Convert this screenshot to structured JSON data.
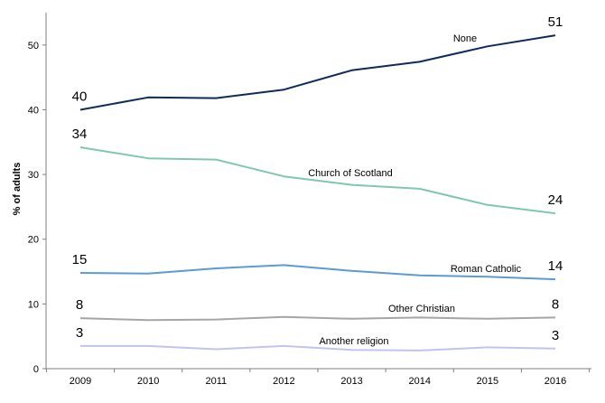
{
  "chart_data": {
    "type": "line",
    "title": "",
    "xlabel": "",
    "ylabel": "% of adults",
    "x": [
      "2009",
      "2010",
      "2011",
      "2012",
      "2013",
      "2014",
      "2015",
      "2016"
    ],
    "ylim": [
      0,
      55
    ],
    "yticks": [
      0,
      10,
      20,
      30,
      40,
      50
    ],
    "grid": false,
    "legend": "none (series labelled inline)",
    "series": [
      {
        "name": "None",
        "color": "#0f2b5b",
        "values": [
          40,
          41.9,
          41.8,
          43.1,
          46.1,
          47.4,
          49.8,
          51.5
        ],
        "start_label": "40",
        "end_label": "51"
      },
      {
        "name": "Church of Scotland",
        "color": "#7fc7b2",
        "values": [
          34.2,
          32.5,
          32.3,
          29.7,
          28.4,
          27.8,
          25.3,
          24.0
        ],
        "start_label": "34",
        "end_label": "24"
      },
      {
        "name": "Roman Catholic",
        "color": "#5b9bd5",
        "values": [
          14.8,
          14.7,
          15.5,
          16.0,
          15.1,
          14.4,
          14.2,
          13.8
        ],
        "start_label": "15",
        "end_label": "14"
      },
      {
        "name": "Other Christian",
        "color": "#a6a6a6",
        "values": [
          7.8,
          7.5,
          7.6,
          8.0,
          7.7,
          7.9,
          7.7,
          7.9
        ],
        "start_label": "8",
        "end_label": "8"
      },
      {
        "name": "Another religion",
        "color": "#c3c3ef",
        "values": [
          3.5,
          3.5,
          3.0,
          3.5,
          2.9,
          2.8,
          3.3,
          3.1
        ],
        "start_label": "3",
        "end_label": "3"
      }
    ]
  }
}
